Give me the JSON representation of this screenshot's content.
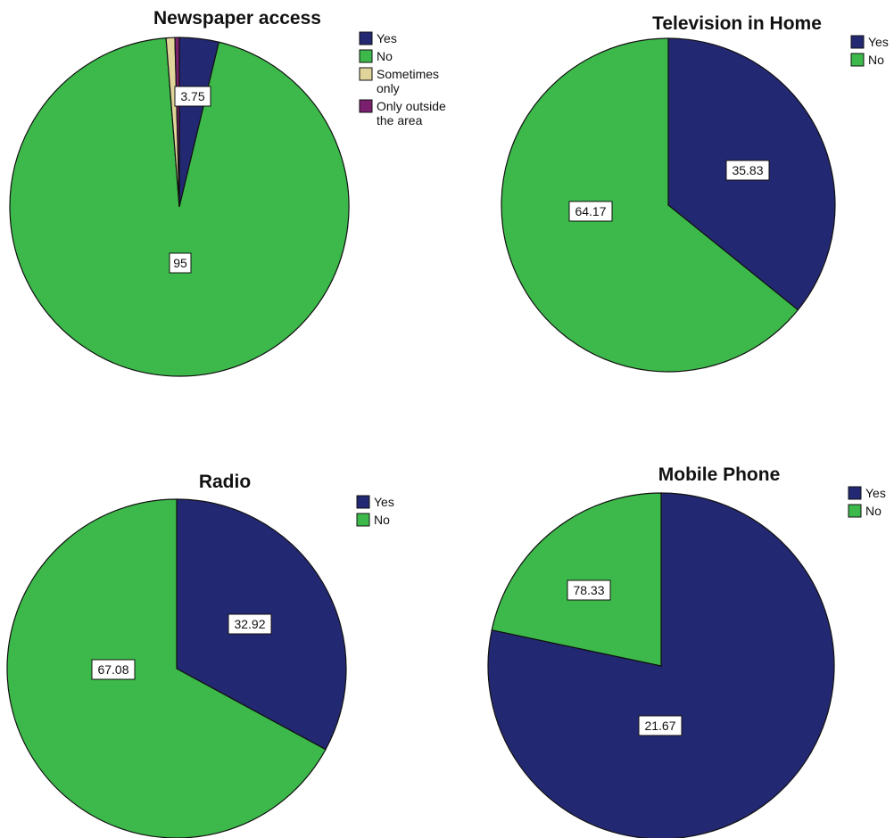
{
  "chart_data": [
    {
      "type": "pie",
      "title": "Newspaper access",
      "legend_position": "top-right",
      "slices": [
        {
          "name": "Yes",
          "value": 3.75,
          "label": "3.75",
          "color": "#232873"
        },
        {
          "name": "No",
          "value": 95,
          "label": "95",
          "color": "#3cb94a"
        },
        {
          "name": "Sometimes only",
          "value": 0.83,
          "label": "",
          "color": "#e0d49a"
        },
        {
          "name": "Only outside the area",
          "value": 0.42,
          "label": "",
          "color": "#7a1f6e"
        }
      ],
      "legend": [
        {
          "lines": [
            "Yes"
          ],
          "color": "#232873"
        },
        {
          "lines": [
            "No"
          ],
          "color": "#3cb94a"
        },
        {
          "lines": [
            "Sometimes",
            "only"
          ],
          "color": "#e0d49a"
        },
        {
          "lines": [
            "Only outside",
            "the area"
          ],
          "color": "#7a1f6e"
        }
      ]
    },
    {
      "type": "pie",
      "title": "Television in Home",
      "legend_position": "top-right",
      "slices": [
        {
          "name": "Yes",
          "value": 35.83,
          "label": "35.83",
          "color": "#232873"
        },
        {
          "name": "No",
          "value": 64.17,
          "label": "64.17",
          "color": "#3cb94a"
        }
      ],
      "legend": [
        {
          "lines": [
            "Yes"
          ],
          "color": "#232873"
        },
        {
          "lines": [
            "No"
          ],
          "color": "#3cb94a"
        }
      ]
    },
    {
      "type": "pie",
      "title": "Radio",
      "legend_position": "top-right",
      "slices": [
        {
          "name": "Yes",
          "value": 32.92,
          "label": "32.92",
          "color": "#232873"
        },
        {
          "name": "No",
          "value": 67.08,
          "label": "67.08",
          "color": "#3cb94a"
        }
      ],
      "legend": [
        {
          "lines": [
            "Yes"
          ],
          "color": "#232873"
        },
        {
          "lines": [
            "No"
          ],
          "color": "#3cb94a"
        }
      ]
    },
    {
      "type": "pie",
      "title": "Mobile Phone",
      "legend_position": "top-right",
      "slices": [
        {
          "name": "Yes",
          "value": 78.33,
          "label": "78.33",
          "color": "#232873"
        },
        {
          "name": "No",
          "value": 21.67,
          "label": "21.67",
          "color": "#3cb94a"
        }
      ],
      "legend": [
        {
          "lines": [
            "Yes"
          ],
          "color": "#232873"
        },
        {
          "lines": [
            "No"
          ],
          "color": "#3cb94a"
        }
      ]
    }
  ]
}
